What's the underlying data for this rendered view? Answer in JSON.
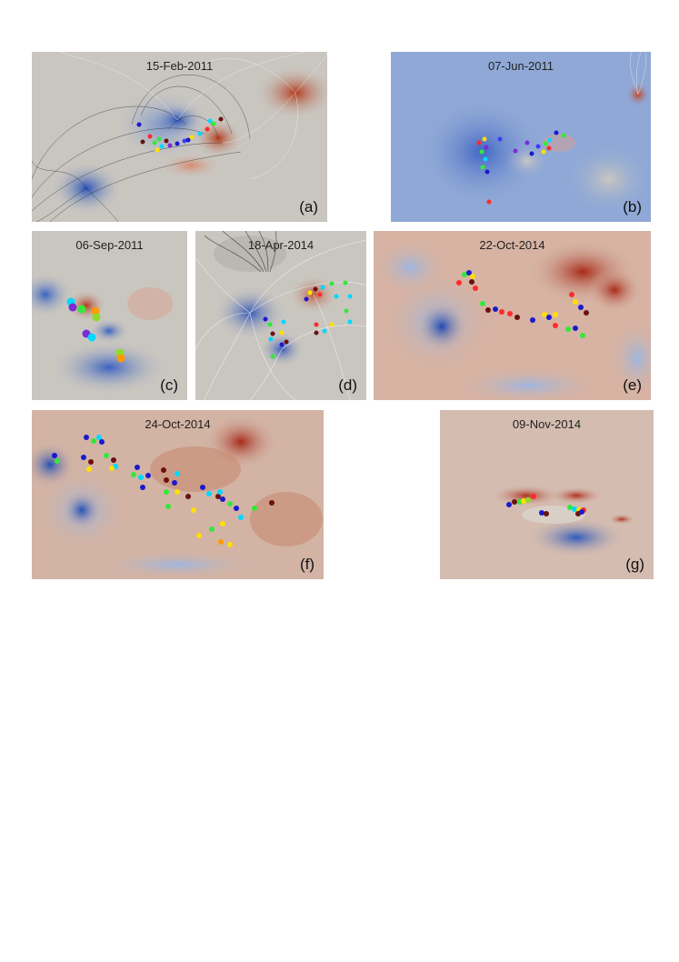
{
  "panels": [
    {
      "id": "a",
      "date": "15-Feb-2011",
      "label": "(a)"
    },
    {
      "id": "b",
      "date": "07-Jun-2011",
      "label": "(b)"
    },
    {
      "id": "c",
      "date": "06-Sep-2011",
      "label": "(c)"
    },
    {
      "id": "d",
      "date": "18-Apr-2014",
      "label": "(d)"
    },
    {
      "id": "e",
      "date": "22-Oct-2014",
      "label": "(e)"
    },
    {
      "id": "f",
      "date": "24-Oct-2014",
      "label": "(f)"
    },
    {
      "id": "g",
      "date": "09-Nov-2014",
      "label": "(g)"
    }
  ],
  "colors": {
    "background": "#c9c6c0",
    "positive_polarity": "#c0573a",
    "negative_polarity": "#3f6fc0",
    "marker_palette": [
      "#1a1acc",
      "#3b3bff",
      "#ff2a2a",
      "#ffe000",
      "#00d8ff",
      "#33e83a",
      "#6b1010",
      "#7a2bd6",
      "#ff9900",
      "#8fdc2a"
    ]
  }
}
